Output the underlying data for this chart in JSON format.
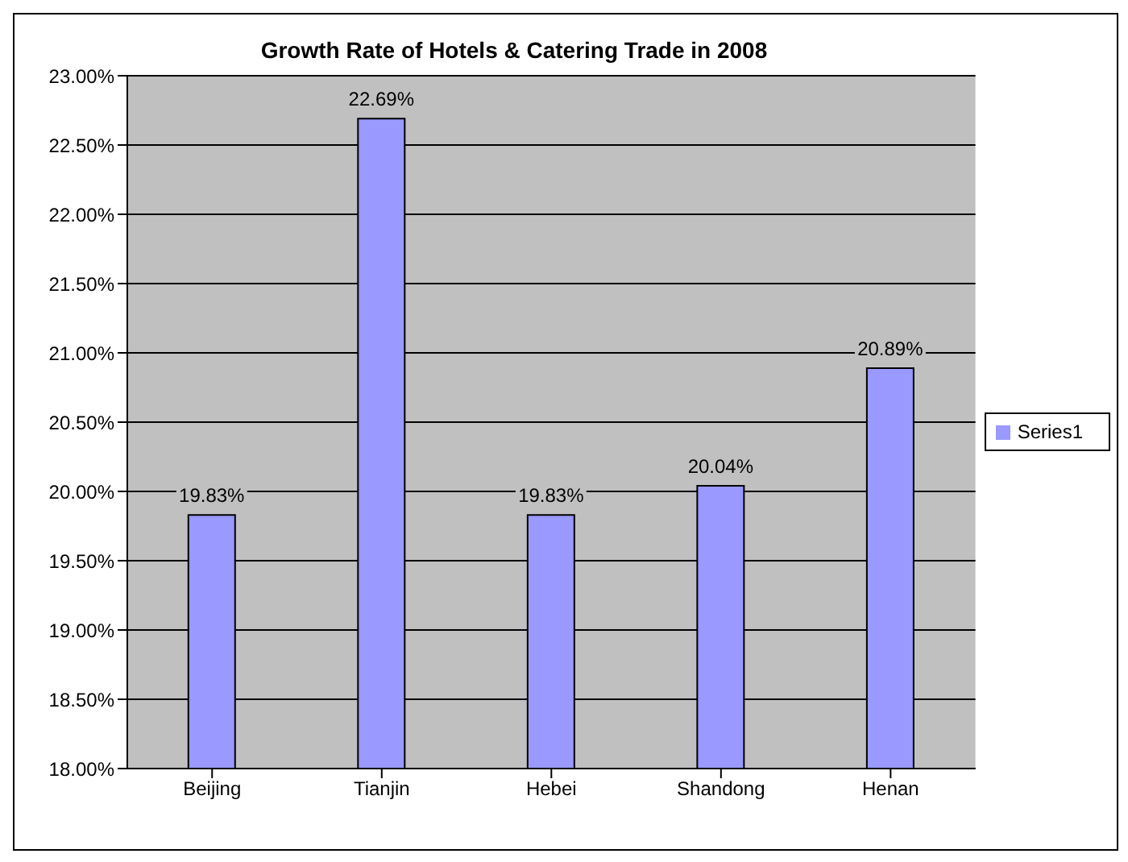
{
  "chart_data": {
    "type": "bar",
    "title": "Growth Rate of Hotels & Catering Trade in 2008",
    "categories": [
      "Beijing",
      "Tianjin",
      "Hebei",
      "Shandong",
      "Henan"
    ],
    "series": [
      {
        "name": "Series1",
        "color": "#9999ff",
        "values": [
          19.83,
          22.69,
          19.83,
          20.04,
          20.89
        ],
        "value_labels": [
          "19.83%",
          "22.69%",
          "19.83%",
          "20.04%",
          "20.89%"
        ]
      }
    ],
    "ylim": [
      18,
      23
    ],
    "yticks": [
      {
        "value": 18,
        "label": "18.00%"
      },
      {
        "value": 18.5,
        "label": "18.50%"
      },
      {
        "value": 19,
        "label": "19.00%"
      },
      {
        "value": 19.5,
        "label": "19.50%"
      },
      {
        "value": 20,
        "label": "20.00%"
      },
      {
        "value": 20.5,
        "label": "20.50%"
      },
      {
        "value": 21,
        "label": "21.00%"
      },
      {
        "value": 21.5,
        "label": "21.50%"
      },
      {
        "value": 22,
        "label": "22.00%"
      },
      {
        "value": 22.5,
        "label": "22.50%"
      },
      {
        "value": 23,
        "label": "23.00%"
      }
    ],
    "grid": "y",
    "legend": "right"
  }
}
